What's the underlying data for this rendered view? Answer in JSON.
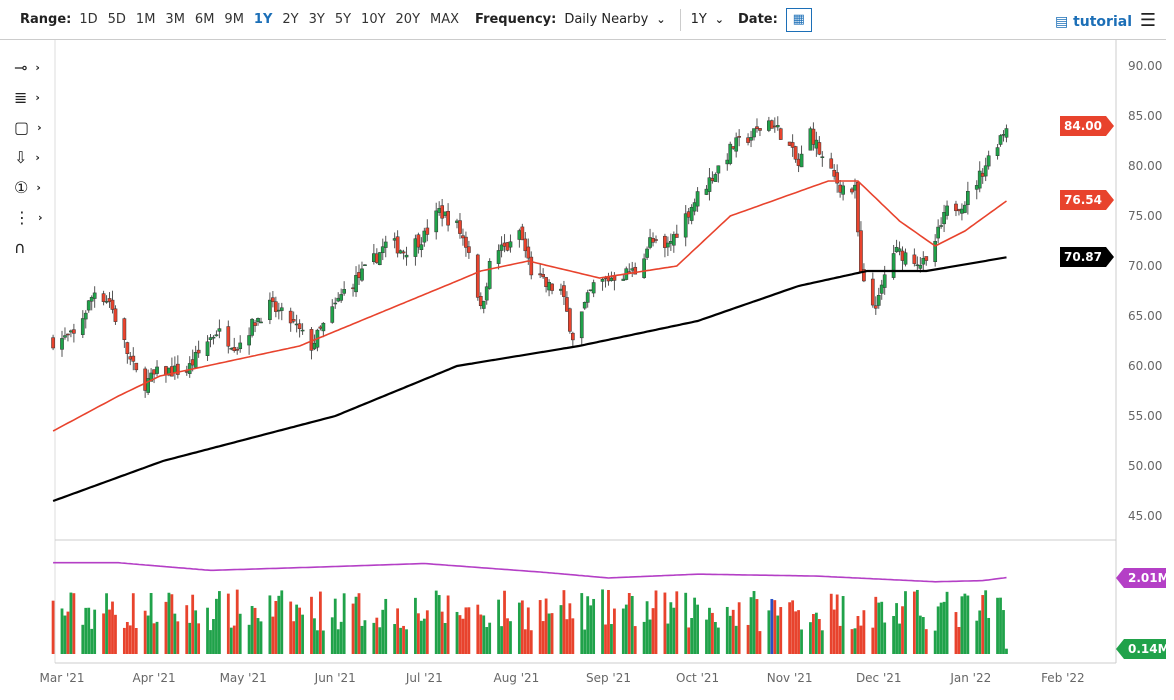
{
  "toolbar": {
    "range_label": "Range:",
    "ranges": [
      "1D",
      "5D",
      "1M",
      "3M",
      "6M",
      "9M",
      "1Y",
      "2Y",
      "3Y",
      "5Y",
      "10Y",
      "20Y",
      "MAX"
    ],
    "active_range": "1Y",
    "frequency_label": "Frequency:",
    "frequency_value": "Daily Nearby",
    "period_value": "1Y",
    "date_label": "Date:",
    "tutorial_label": "tutorial"
  },
  "left_tools": [
    {
      "icon": "line-tool-icon",
      "glyph": "⊸"
    },
    {
      "icon": "fib-tool-icon",
      "glyph": "≣"
    },
    {
      "icon": "rectangle-tool-icon",
      "glyph": "▢"
    },
    {
      "icon": "arrow-down-tool-icon",
      "glyph": "⇩"
    },
    {
      "icon": "numbered-marker-icon",
      "glyph": "①"
    },
    {
      "icon": "measure-tool-icon",
      "glyph": "⋮"
    },
    {
      "icon": "magnet-icon",
      "glyph": "∩"
    }
  ],
  "colors": {
    "up": "#20a24a",
    "down": "#e8432d",
    "ma50": "#e8432d",
    "ma200": "#000000",
    "volume_ma": "#b43fc6",
    "highlight_volume": "#2b4fc4"
  },
  "chart_data": {
    "type": "candlestick",
    "price_axis": {
      "min": 45,
      "max": 90,
      "ticks": [
        "45.00",
        "50.00",
        "55.00",
        "60.00",
        "65.00",
        "70.00",
        "75.00",
        "80.00",
        "85.00",
        "90.00"
      ]
    },
    "x_ticks": [
      [
        "2021-03-01",
        "Mar '21"
      ],
      [
        "2021-04-01",
        "Apr '21"
      ],
      [
        "2021-05-01",
        "May '21"
      ],
      [
        "2021-06-01",
        "Jun '21"
      ],
      [
        "2021-07-01",
        "Jul '21"
      ],
      [
        "2021-08-01",
        "Aug '21"
      ],
      [
        "2021-09-01",
        "Sep '21"
      ],
      [
        "2021-10-01",
        "Oct '21"
      ],
      [
        "2021-11-01",
        "Nov '21"
      ],
      [
        "2021-12-01",
        "Dec '21"
      ],
      [
        "2022-01-01",
        "Jan '22"
      ],
      [
        "2022-02-01",
        "Feb '22"
      ]
    ],
    "close_anchors": [
      [
        "2021-02-26",
        62.5
      ],
      [
        "2021-03-05",
        63
      ],
      [
        "2021-03-12",
        67.5
      ],
      [
        "2021-03-17",
        66.5
      ],
      [
        "2021-03-24",
        60.5
      ],
      [
        "2021-03-28",
        58
      ],
      [
        "2021-04-03",
        59.5
      ],
      [
        "2021-04-12",
        59.5
      ],
      [
        "2021-04-19",
        62.5
      ],
      [
        "2021-04-22",
        63.5
      ],
      [
        "2021-04-29",
        62
      ],
      [
        "2021-05-05",
        64.5
      ],
      [
        "2021-05-10",
        66
      ],
      [
        "2021-05-17",
        64.5
      ],
      [
        "2021-05-24",
        62
      ],
      [
        "2021-05-28",
        64
      ],
      [
        "2021-06-04",
        67.5
      ],
      [
        "2021-06-11",
        69.5
      ],
      [
        "2021-06-19",
        72.5
      ],
      [
        "2021-06-24",
        71.5
      ],
      [
        "2021-07-01",
        73
      ],
      [
        "2021-07-06",
        75.5
      ],
      [
        "2021-07-12",
        74
      ],
      [
        "2021-07-17",
        71
      ],
      [
        "2021-07-20",
        65.5
      ],
      [
        "2021-07-24",
        71.5
      ],
      [
        "2021-07-31",
        72
      ],
      [
        "2021-08-02",
        73.5
      ],
      [
        "2021-08-06",
        69.5
      ],
      [
        "2021-08-11",
        68
      ],
      [
        "2021-08-16",
        67.5
      ],
      [
        "2021-08-20",
        63
      ],
      [
        "2021-08-24",
        66
      ],
      [
        "2021-08-27",
        68
      ],
      [
        "2021-09-03",
        69
      ],
      [
        "2021-09-10",
        69.5
      ],
      [
        "2021-09-15",
        72.5
      ],
      [
        "2021-09-20",
        71.5
      ],
      [
        "2021-09-27",
        75
      ],
      [
        "2021-10-01",
        77
      ],
      [
        "2021-10-06",
        79
      ],
      [
        "2021-10-13",
        82
      ],
      [
        "2021-10-19",
        83
      ],
      [
        "2021-10-25",
        84.5
      ],
      [
        "2021-10-30",
        83
      ],
      [
        "2021-11-04",
        80
      ],
      [
        "2021-11-08",
        83.5
      ],
      [
        "2021-11-13",
        80
      ],
      [
        "2021-11-18",
        78
      ],
      [
        "2021-11-23",
        77.5
      ],
      [
        "2021-11-25",
        69
      ],
      [
        "2021-11-28",
        66
      ],
      [
        "2021-12-01",
        66.5
      ],
      [
        "2021-12-05",
        71.5
      ],
      [
        "2021-12-12",
        71
      ],
      [
        "2021-12-17",
        70
      ],
      [
        "2021-12-20",
        72.5
      ],
      [
        "2021-12-24",
        75.5
      ],
      [
        "2021-12-30",
        76.5
      ],
      [
        "2022-01-04",
        79
      ],
      [
        "2022-01-09",
        82
      ],
      [
        "2022-01-13",
        84
      ]
    ],
    "ma50": [
      [
        "2021-02-26",
        53.5
      ],
      [
        "2021-03-20",
        57
      ],
      [
        "2021-04-03",
        59
      ],
      [
        "2021-05-20",
        62
      ],
      [
        "2021-07-12",
        68.5
      ],
      [
        "2021-07-20",
        69.5
      ],
      [
        "2021-08-05",
        70.5
      ],
      [
        "2021-08-29",
        68.8
      ],
      [
        "2021-09-24",
        70
      ],
      [
        "2021-10-12",
        75
      ],
      [
        "2021-11-14",
        78.5
      ],
      [
        "2021-11-24",
        78.5
      ],
      [
        "2021-12-08",
        74.5
      ],
      [
        "2021-12-20",
        72
      ],
      [
        "2021-12-30",
        73.5
      ],
      [
        "2022-01-13",
        76.5
      ]
    ],
    "ma200": [
      [
        "2021-02-26",
        46.5
      ],
      [
        "2021-04-04",
        50.5
      ],
      [
        "2021-06-01",
        55
      ],
      [
        "2021-07-12",
        60
      ],
      [
        "2021-08-22",
        62
      ],
      [
        "2021-10-01",
        64.5
      ],
      [
        "2021-11-04",
        68
      ],
      [
        "2021-11-27",
        69.5
      ],
      [
        "2021-12-17",
        69.5
      ],
      [
        "2022-01-13",
        70.87
      ]
    ],
    "volume_ma": [
      [
        "2021-02-26",
        2.4
      ],
      [
        "2021-03-20",
        2.4
      ],
      [
        "2021-04-20",
        2.2
      ],
      [
        "2021-06-01",
        2.3
      ],
      [
        "2021-07-01",
        2.38
      ],
      [
        "2021-08-10",
        2.15
      ],
      [
        "2021-09-01",
        2.0
      ],
      [
        "2021-10-01",
        2.1
      ],
      [
        "2021-11-10",
        2.05
      ],
      [
        "2021-12-20",
        1.9
      ],
      [
        "2022-01-05",
        1.93
      ],
      [
        "2022-01-13",
        2.01
      ]
    ],
    "last_price": "84.00",
    "ma50_last": "76.54",
    "ma200_last": "70.87",
    "volume_ma_last": "2.01M",
    "volume_last": "0.14M"
  }
}
